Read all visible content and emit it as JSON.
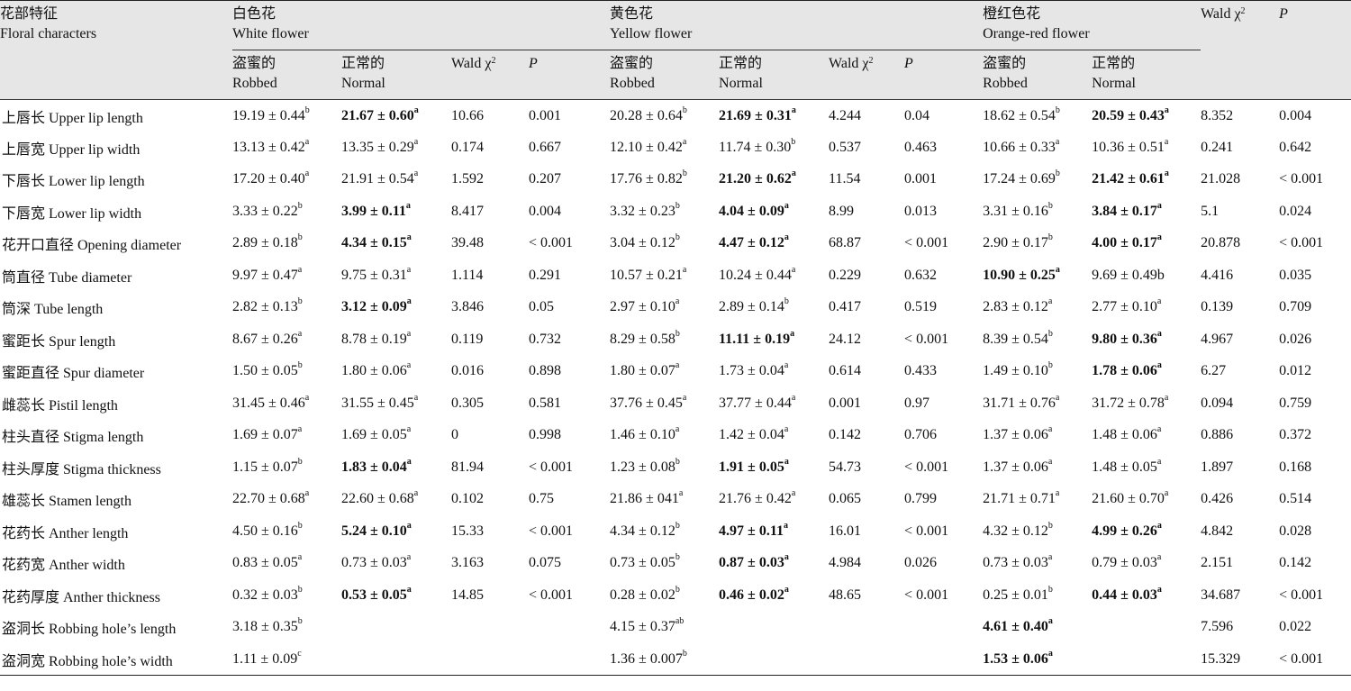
{
  "header": {
    "floral": {
      "zh": "花部特征",
      "en": "Floral characters"
    },
    "white": {
      "zh": "白色花",
      "en": "White flower"
    },
    "yellow": {
      "zh": "黄色花",
      "en": "Yellow flower"
    },
    "orange": {
      "zh": "橙红色花",
      "en": "Orange-red flower"
    },
    "robbed": {
      "zh": "盗蜜的",
      "en": "Robbed"
    },
    "normal": {
      "zh": "正常的",
      "en": "Normal"
    },
    "wald": "Wald χ",
    "wald_sup": "2",
    "p": "P"
  },
  "rows": [
    {
      "label": "上唇长  Upper lip length",
      "cells": [
        {
          "v": "19.19 ± 0.44",
          "s": "b"
        },
        {
          "v": "21.67 ± 0.60",
          "s": "a",
          "b": true
        },
        {
          "v": "10.66"
        },
        {
          "v": "0.001"
        },
        {
          "v": "20.28 ± 0.64",
          "s": "b"
        },
        {
          "v": "21.69 ± 0.31",
          "s": "a",
          "b": true
        },
        {
          "v": "4.244"
        },
        {
          "v": "0.04"
        },
        {
          "v": "18.62 ± 0.54",
          "s": "b"
        },
        {
          "v": "20.59 ± 0.43",
          "s": "a",
          "b": true
        },
        {
          "v": "8.352"
        },
        {
          "v": "0.004"
        }
      ]
    },
    {
      "label": "上唇宽  Upper lip width",
      "cells": [
        {
          "v": "13.13 ± 0.42",
          "s": "a"
        },
        {
          "v": "13.35 ± 0.29",
          "s": "a"
        },
        {
          "v": "0.174"
        },
        {
          "v": "0.667"
        },
        {
          "v": "12.10 ± 0.42",
          "s": "a"
        },
        {
          "v": "11.74 ± 0.30",
          "s": "b"
        },
        {
          "v": "0.537"
        },
        {
          "v": "0.463"
        },
        {
          "v": "10.66 ± 0.33",
          "s": "a"
        },
        {
          "v": "10.36 ± 0.51",
          "s": "a"
        },
        {
          "v": "0.241"
        },
        {
          "v": "0.642"
        }
      ]
    },
    {
      "label": "下唇长  Lower lip length",
      "cells": [
        {
          "v": "17.20 ± 0.40",
          "s": "a"
        },
        {
          "v": "21.91 ± 0.54",
          "s": "a"
        },
        {
          "v": "1.592"
        },
        {
          "v": "0.207"
        },
        {
          "v": "17.76 ± 0.82",
          "s": "b"
        },
        {
          "v": "21.20 ± 0.62",
          "s": "a",
          "b": true
        },
        {
          "v": "11.54"
        },
        {
          "v": "0.001"
        },
        {
          "v": "17.24 ± 0.69",
          "s": "b"
        },
        {
          "v": "21.42 ± 0.61",
          "s": "a",
          "b": true
        },
        {
          "v": "21.028"
        },
        {
          "v": "< 0.001"
        }
      ]
    },
    {
      "label": "下唇宽  Lower lip width",
      "cells": [
        {
          "v": "3.33 ± 0.22",
          "s": "b"
        },
        {
          "v": "3.99 ± 0.11",
          "s": "a",
          "b": true
        },
        {
          "v": "8.417"
        },
        {
          "v": "0.004"
        },
        {
          "v": "3.32 ± 0.23",
          "s": "b"
        },
        {
          "v": "4.04 ± 0.09",
          "s": "a",
          "b": true
        },
        {
          "v": "8.99"
        },
        {
          "v": "0.013"
        },
        {
          "v": "3.31 ± 0.16",
          "s": "b"
        },
        {
          "v": "3.84 ± 0.17",
          "s": "a",
          "b": true
        },
        {
          "v": "5.1"
        },
        {
          "v": "0.024"
        }
      ]
    },
    {
      "label": "花开口直径  Opening diameter",
      "cells": [
        {
          "v": "2.89 ± 0.18",
          "s": "b"
        },
        {
          "v": "4.34 ± 0.15",
          "s": "a",
          "b": true
        },
        {
          "v": "39.48"
        },
        {
          "v": "< 0.001"
        },
        {
          "v": "3.04 ± 0.12",
          "s": "b"
        },
        {
          "v": "4.47 ± 0.12",
          "s": "a",
          "b": true
        },
        {
          "v": "68.87"
        },
        {
          "v": "< 0.001"
        },
        {
          "v": "2.90 ± 0.17",
          "s": "b"
        },
        {
          "v": "4.00 ± 0.17",
          "s": "a",
          "b": true
        },
        {
          "v": "20.878"
        },
        {
          "v": "< 0.001"
        }
      ]
    },
    {
      "label": "筒直径  Tube diameter",
      "cells": [
        {
          "v": "9.97 ± 0.47",
          "s": "a"
        },
        {
          "v": "9.75 ± 0.31",
          "s": "a"
        },
        {
          "v": "1.114"
        },
        {
          "v": "0.291"
        },
        {
          "v": "10.57 ± 0.21",
          "s": "a"
        },
        {
          "v": "10.24 ± 0.44",
          "s": "a"
        },
        {
          "v": "0.229"
        },
        {
          "v": "0.632"
        },
        {
          "v": "10.90 ± 0.25",
          "s": "a",
          "b": true
        },
        {
          "v": "9.69 ± 0.49b"
        },
        {
          "v": "4.416"
        },
        {
          "v": "0.035"
        }
      ]
    },
    {
      "label": "筒深  Tube length",
      "cells": [
        {
          "v": "2.82 ± 0.13",
          "s": "b"
        },
        {
          "v": "3.12 ± 0.09",
          "s": "a",
          "b": true
        },
        {
          "v": "3.846"
        },
        {
          "v": "0.05"
        },
        {
          "v": "2.97 ± 0.10",
          "s": "a"
        },
        {
          "v": "2.89 ± 0.14",
          "s": "b"
        },
        {
          "v": "0.417"
        },
        {
          "v": "0.519"
        },
        {
          "v": "2.83 ± 0.12",
          "s": "a"
        },
        {
          "v": "2.77 ± 0.10",
          "s": "a"
        },
        {
          "v": "0.139"
        },
        {
          "v": "0.709"
        }
      ]
    },
    {
      "label": "蜜距长  Spur length",
      "cells": [
        {
          "v": "8.67 ± 0.26",
          "s": "a"
        },
        {
          "v": "8.78 ± 0.19",
          "s": "a"
        },
        {
          "v": "0.119"
        },
        {
          "v": "0.732"
        },
        {
          "v": "8.29 ± 0.58",
          "s": "b"
        },
        {
          "v": "11.11 ± 0.19",
          "s": "a",
          "b": true
        },
        {
          "v": "24.12"
        },
        {
          "v": "< 0.001"
        },
        {
          "v": "8.39 ± 0.54",
          "s": "b"
        },
        {
          "v": "9.80 ± 0.36",
          "s": "a",
          "b": true
        },
        {
          "v": "4.967"
        },
        {
          "v": "0.026"
        }
      ]
    },
    {
      "label": "蜜距直径 Spur diameter",
      "cells": [
        {
          "v": "1.50 ± 0.05",
          "s": "b"
        },
        {
          "v": "1.80 ± 0.06",
          "s": "a"
        },
        {
          "v": "0.016"
        },
        {
          "v": "0.898"
        },
        {
          "v": "1.80 ± 0.07",
          "s": "a"
        },
        {
          "v": "1.73 ± 0.04",
          "s": "a"
        },
        {
          "v": "0.614"
        },
        {
          "v": "0.433"
        },
        {
          "v": "1.49 ± 0.10",
          "s": "b"
        },
        {
          "v": "1.78 ± 0.06",
          "s": "a",
          "b": true
        },
        {
          "v": "6.27"
        },
        {
          "v": "0.012"
        }
      ]
    },
    {
      "label": "雌蕊长  Pistil length",
      "cells": [
        {
          "v": "31.45 ± 0.46",
          "s": "a"
        },
        {
          "v": "31.55 ± 0.45",
          "s": "a"
        },
        {
          "v": "0.305"
        },
        {
          "v": "0.581"
        },
        {
          "v": "37.76 ± 0.45",
          "s": "a"
        },
        {
          "v": "37.77 ± 0.44",
          "s": "a"
        },
        {
          "v": "0.001"
        },
        {
          "v": "0.97"
        },
        {
          "v": "31.71 ± 0.76",
          "s": "a"
        },
        {
          "v": "31.72 ± 0.78",
          "s": "a"
        },
        {
          "v": "0.094"
        },
        {
          "v": "0.759"
        }
      ]
    },
    {
      "label": "柱头直径  Stigma length",
      "cells": [
        {
          "v": "1.69 ± 0.07",
          "s": "a"
        },
        {
          "v": "1.69 ± 0.05",
          "s": "a"
        },
        {
          "v": "0"
        },
        {
          "v": "0.998"
        },
        {
          "v": "1.46 ± 0.10",
          "s": "a"
        },
        {
          "v": "1.42 ± 0.04",
          "s": "a"
        },
        {
          "v": "0.142"
        },
        {
          "v": "0.706"
        },
        {
          "v": "1.37 ± 0.06",
          "s": "a"
        },
        {
          "v": "1.48 ± 0.06",
          "s": "a"
        },
        {
          "v": "0.886"
        },
        {
          "v": "0.372"
        }
      ]
    },
    {
      "label": "柱头厚度  Stigma thickness",
      "cells": [
        {
          "v": "1.15 ± 0.07",
          "s": "b"
        },
        {
          "v": "1.83 ± 0.04",
          "s": "a",
          "b": true
        },
        {
          "v": "81.94"
        },
        {
          "v": "< 0.001"
        },
        {
          "v": "1.23 ± 0.08",
          "s": "b"
        },
        {
          "v": "1.91 ± 0.05",
          "s": "a",
          "b": true
        },
        {
          "v": "54.73"
        },
        {
          "v": "< 0.001"
        },
        {
          "v": "1.37 ± 0.06",
          "s": "a"
        },
        {
          "v": "1.48 ± 0.05",
          "s": "a"
        },
        {
          "v": "1.897"
        },
        {
          "v": "0.168"
        }
      ]
    },
    {
      "label": "雄蕊长  Stamen length",
      "cells": [
        {
          "v": "22.70 ± 0.68",
          "s": "a"
        },
        {
          "v": "22.60 ± 0.68",
          "s": "a"
        },
        {
          "v": "0.102"
        },
        {
          "v": "0.75"
        },
        {
          "v": "21.86 ± 041",
          "s": "a"
        },
        {
          "v": "21.76 ± 0.42",
          "s": "a"
        },
        {
          "v": "0.065"
        },
        {
          "v": "0.799"
        },
        {
          "v": "21.71 ± 0.71",
          "s": "a"
        },
        {
          "v": "21.60 ± 0.70",
          "s": "a"
        },
        {
          "v": "0.426"
        },
        {
          "v": "0.514"
        }
      ]
    },
    {
      "label": "花药长  Anther length",
      "cells": [
        {
          "v": "4.50 ± 0.16",
          "s": "b"
        },
        {
          "v": "5.24 ± 0.10",
          "s": "a",
          "b": true
        },
        {
          "v": "15.33"
        },
        {
          "v": "< 0.001"
        },
        {
          "v": "4.34 ± 0.12",
          "s": "b"
        },
        {
          "v": "4.97 ± 0.11",
          "s": "a",
          "b": true
        },
        {
          "v": "16.01"
        },
        {
          "v": "< 0.001"
        },
        {
          "v": "4.32 ± 0.12",
          "s": "b"
        },
        {
          "v": "4.99 ± 0.26",
          "s": "a",
          "b": true
        },
        {
          "v": "4.842"
        },
        {
          "v": "0.028"
        }
      ]
    },
    {
      "label": "花药宽  Anther width",
      "cells": [
        {
          "v": "0.83 ± 0.05",
          "s": "a"
        },
        {
          "v": "0.73 ± 0.03",
          "s": "a"
        },
        {
          "v": "3.163"
        },
        {
          "v": "0.075"
        },
        {
          "v": "0.73 ± 0.05",
          "s": "b"
        },
        {
          "v": "0.87 ± 0.03",
          "s": "a",
          "b": true
        },
        {
          "v": "4.984"
        },
        {
          "v": "0.026"
        },
        {
          "v": "0.73 ± 0.03",
          "s": "a"
        },
        {
          "v": "0.79 ± 0.03",
          "s": "a"
        },
        {
          "v": "2.151"
        },
        {
          "v": "0.142"
        }
      ]
    },
    {
      "label": "花药厚度  Anther thickness",
      "cells": [
        {
          "v": "0.32 ± 0.03",
          "s": "b"
        },
        {
          "v": "0.53 ± 0.05",
          "s": "a",
          "b": true
        },
        {
          "v": "14.85"
        },
        {
          "v": "< 0.001"
        },
        {
          "v": "0.28 ± 0.02",
          "s": "b"
        },
        {
          "v": "0.46 ± 0.02",
          "s": "a",
          "b": true
        },
        {
          "v": "48.65"
        },
        {
          "v": "< 0.001"
        },
        {
          "v": "0.25 ± 0.01",
          "s": "b"
        },
        {
          "v": "0.44 ± 0.03",
          "s": "a",
          "b": true
        },
        {
          "v": "34.687"
        },
        {
          "v": "< 0.001"
        }
      ]
    },
    {
      "label": "盗洞长  Robbing hole’s length",
      "cells": [
        {
          "v": "3.18 ± 0.35",
          "s": "b"
        },
        {},
        {},
        {},
        {
          "v": "4.15 ± 0.37",
          "s": "ab"
        },
        {},
        {},
        {},
        {
          "v": "4.61 ± 0.40",
          "s": "a",
          "b": true
        },
        {},
        {
          "v": "7.596"
        },
        {
          "v": "0.022"
        }
      ]
    },
    {
      "label": "盗洞宽  Robbing hole’s width",
      "cells": [
        {
          "v": "1.11 ± 0.09",
          "s": "c"
        },
        {},
        {},
        {},
        {
          "v": "1.36 ± 0.007",
          "s": "b"
        },
        {},
        {},
        {},
        {
          "v": "1.53 ± 0.06",
          "s": "a",
          "b": true
        },
        {},
        {
          "v": "15.329"
        },
        {
          "v": "< 0.001"
        }
      ]
    }
  ]
}
